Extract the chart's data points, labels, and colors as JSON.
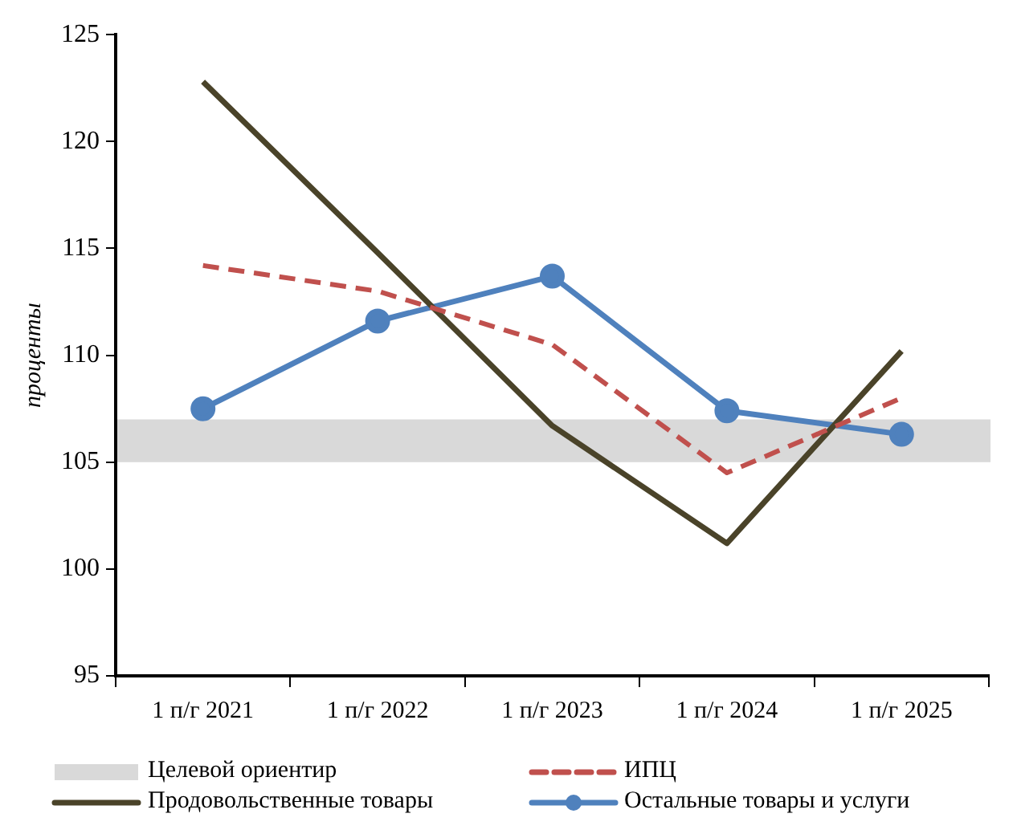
{
  "chart_data": {
    "type": "line",
    "ylabel": "проценты",
    "categories": [
      "1 п/г 2021",
      "1 п/г 2022",
      "1 п/г 2023",
      "1 п/г 2024",
      "1 п/г 2025"
    ],
    "series": [
      {
        "name": "ИПЦ",
        "color": "#c0504d",
        "values": [
          114.2,
          113.0,
          110.5,
          104.5,
          108.0
        ],
        "line_style": "dashed",
        "marker": "none"
      },
      {
        "name": "Продовольственные товары",
        "color": "#4a4329",
        "values": [
          122.8,
          114.8,
          106.7,
          101.2,
          110.2
        ],
        "line_style": "solid",
        "marker": "none"
      },
      {
        "name": "Остальные товары и услуги",
        "color": "#4f81bd",
        "values": [
          107.5,
          111.6,
          113.7,
          107.4,
          106.3
        ],
        "line_style": "solid",
        "marker": "circle"
      }
    ],
    "bands": [
      {
        "axis": "y",
        "from": 105,
        "to": 107,
        "label": "Целевой ориентир",
        "color": "#d9d9d9"
      }
    ],
    "ylim": [
      95,
      125
    ],
    "yticks": [
      95,
      100,
      105,
      110,
      115,
      120,
      125
    ],
    "grid": false,
    "legend": "bottom"
  }
}
